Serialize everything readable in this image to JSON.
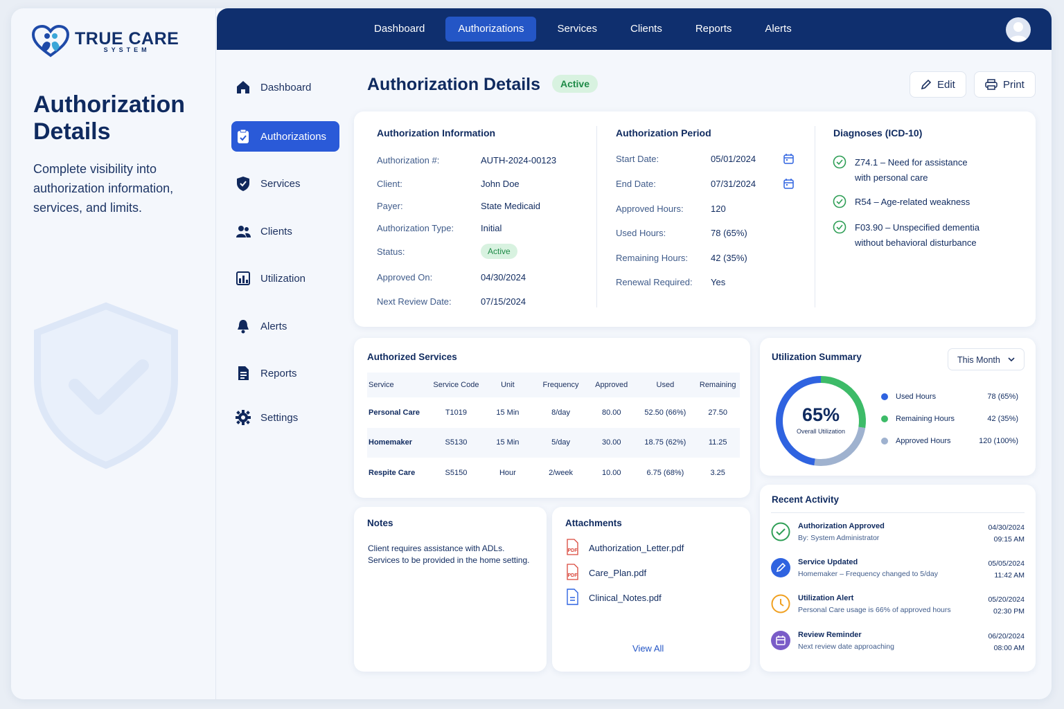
{
  "brand": {
    "name": "TRUE CARE",
    "sub": "SYSTEM"
  },
  "hero": {
    "title": "Authorization Details",
    "subtitle": "Complete visibility into authorization information, services, and limits."
  },
  "topnav": [
    "Dashboard",
    "Authorizations",
    "Services",
    "Clients",
    "Reports",
    "Alerts"
  ],
  "topnav_active": "Authorizations",
  "sidebar": [
    {
      "label": "Dashboard",
      "icon": "home-icon"
    },
    {
      "label": "Authorizations",
      "icon": "clipboard-icon"
    },
    {
      "label": "Services",
      "icon": "shield-check-icon"
    },
    {
      "label": "Clients",
      "icon": "users-icon"
    },
    {
      "label": "Utilization",
      "icon": "chart-icon"
    },
    {
      "label": "Alerts",
      "icon": "bell-icon"
    },
    {
      "label": "Reports",
      "icon": "document-icon"
    },
    {
      "label": "Settings",
      "icon": "gear-icon"
    }
  ],
  "page": {
    "title": "Authorization Details",
    "status": "Active",
    "edit": "Edit",
    "print": "Print"
  },
  "auth_info": {
    "heading": "Authorization Information",
    "rows": [
      {
        "label": "Authorization #:",
        "value": "AUTH-2024-00123"
      },
      {
        "label": "Client:",
        "value": "John Doe"
      },
      {
        "label": "Payer:",
        "value": "State Medicaid"
      },
      {
        "label": "Authorization Type:",
        "value": "Initial"
      },
      {
        "label": "Status:",
        "value": "Active"
      },
      {
        "label": "Approved On:",
        "value": "04/30/2024"
      },
      {
        "label": "Next Review Date:",
        "value": "07/15/2024"
      }
    ]
  },
  "auth_period": {
    "heading": "Authorization Period",
    "rows": [
      {
        "label": "Start Date:",
        "value": "05/01/2024"
      },
      {
        "label": "End Date:",
        "value": "07/31/2024"
      },
      {
        "label": "Approved Hours:",
        "value": "120"
      },
      {
        "label": "Used Hours:",
        "value": "78 (65%)"
      },
      {
        "label": "Remaining Hours:",
        "value": "42 (35%)"
      },
      {
        "label": "Renewal Required:",
        "value": "Yes"
      }
    ]
  },
  "diagnoses": {
    "heading": "Diagnoses (ICD-10)",
    "items": [
      [
        "Z74.1 – Need for assistance",
        "with personal care"
      ],
      [
        "R54 – Age-related weakness"
      ],
      [
        "F03.90 – Unspecified dementia",
        "without behavioral disturbance"
      ]
    ]
  },
  "services": {
    "heading": "Authorized Services",
    "columns": [
      "Service",
      "Service Code",
      "Unit",
      "Frequency",
      "Approved",
      "Used",
      "Remaining"
    ],
    "rows": [
      [
        "Personal Care",
        "T1019",
        "15 Min",
        "8/day",
        "80.00",
        "52.50 (66%)",
        "27.50"
      ],
      [
        "Homemaker",
        "S5130",
        "15 Min",
        "5/day",
        "30.00",
        "18.75 (62%)",
        "11.25"
      ],
      [
        "Respite Care",
        "S5150",
        "Hour",
        "2/week",
        "10.00",
        "6.75 (68%)",
        "3.25"
      ]
    ]
  },
  "utilization": {
    "heading": "Utilization Summary",
    "period": "This Month",
    "percent": "65%",
    "center_label": "Overall Utilization",
    "used_fraction": 0.65,
    "legend": [
      {
        "label": "Used Hours",
        "value": "78 (65%)",
        "color": "#2f63e0"
      },
      {
        "label": "Remaining Hours",
        "value": "42 (35%)",
        "color": "#3dbb68"
      },
      {
        "label": "Approved Hours",
        "value": "120 (100%)",
        "color": "#9fb2cf"
      }
    ]
  },
  "notes": {
    "heading": "Notes",
    "text": [
      "Client requires assistance with ADLs.",
      "Services to be provided in the home setting."
    ]
  },
  "attachments": {
    "heading": "Attachments",
    "files": [
      "Authorization_Letter.pdf",
      "Care_Plan.pdf",
      "Clinical_Notes.pdf"
    ],
    "view_all": "View All"
  },
  "activity": {
    "heading": "Recent Activity",
    "items": [
      {
        "title": "Authorization Approved",
        "desc": "By: System Administrator",
        "date": "04/30/2024",
        "time": "09:15 AM",
        "color": "#2e9e55",
        "icon": "check-circle-icon"
      },
      {
        "title": "Service Updated",
        "desc": "Homemaker – Frequency changed to 5/day",
        "date": "05/05/2024",
        "time": "11:42 AM",
        "color": "#2f63e0",
        "icon": "pencil-icon"
      },
      {
        "title": "Utilization Alert",
        "desc": "Personal Care usage is 66% of approved hours",
        "date": "05/20/2024",
        "time": "02:30 PM",
        "color": "#f0a020",
        "icon": "clock-icon"
      },
      {
        "title": "Review Reminder",
        "desc": "Next review date approaching",
        "date": "06/20/2024",
        "time": "08:00 AM",
        "color": "#7a5cc8",
        "icon": "calendar-icon"
      }
    ]
  }
}
